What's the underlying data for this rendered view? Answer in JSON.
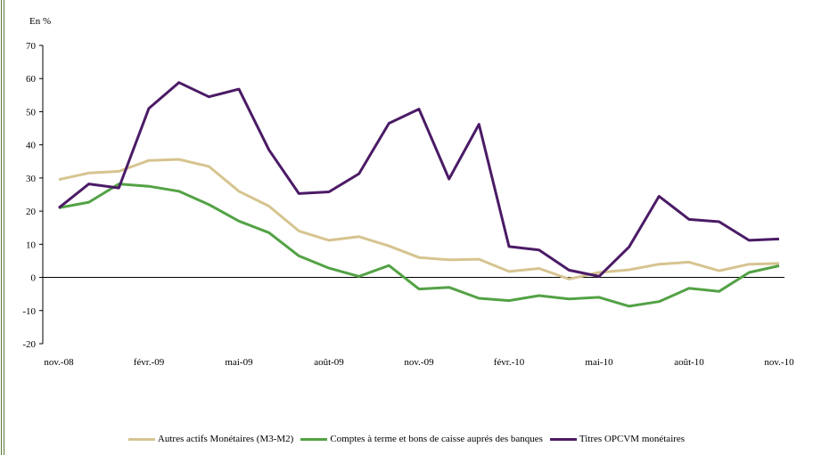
{
  "chart_data": {
    "type": "line",
    "ylabel": "En %",
    "ylim": [
      -20,
      70
    ],
    "yticks": [
      70,
      60,
      50,
      40,
      30,
      20,
      10,
      0,
      -10,
      -20
    ],
    "x": [
      "nov.-08",
      "déc.-08",
      "janv.-09",
      "févr.-09",
      "mars-09",
      "avr.-09",
      "mai-09",
      "juin-09",
      "juil.-09",
      "août-09",
      "sept.-09",
      "oct.-09",
      "nov.-09",
      "déc.-09",
      "janv.-10",
      "févr.-10",
      "mars-10",
      "avr.-10",
      "mai-10",
      "juin-10",
      "juil.-10",
      "août-10",
      "sept.-10",
      "oct.-10",
      "nov.-10"
    ],
    "xtick_labels": [
      {
        "index": 0,
        "label": "nov.-08"
      },
      {
        "index": 3,
        "label": "févr.-09"
      },
      {
        "index": 6,
        "label": "mai-09"
      },
      {
        "index": 9,
        "label": "août-09"
      },
      {
        "index": 12,
        "label": "nov.-09"
      },
      {
        "index": 15,
        "label": "févr.-10"
      },
      {
        "index": 18,
        "label": "mai-10"
      },
      {
        "index": 21,
        "label": "août-10"
      },
      {
        "index": 24,
        "label": "nov.-10"
      }
    ],
    "series": [
      {
        "name": "Autres actifs Monétaires (M3-M2)",
        "color": "#d6c490",
        "values": [
          29.5,
          31.5,
          32,
          35.3,
          35.6,
          33.5,
          26,
          21.5,
          14,
          11.2,
          12.3,
          9.5,
          6,
          5.3,
          5.5,
          1.8,
          2.7,
          -0.5,
          1.5,
          2.3,
          4,
          4.6,
          2,
          4,
          4.2
        ]
      },
      {
        "name": "Comptes à terme et bons de caisse auprés des banques",
        "color": "#53a245",
        "values": [
          21,
          22.7,
          28.2,
          27.5,
          26,
          22,
          17,
          13.5,
          6.5,
          2.8,
          0.3,
          3.6,
          -3.5,
          -3,
          -6.3,
          -7,
          -5.5,
          -6.5,
          -6,
          -8.7,
          -7.3,
          -3.3,
          -4.2,
          1.5,
          3.5
        ]
      },
      {
        "name": "Titres OPCVM monétaires",
        "color": "#4b1b66",
        "values": [
          21,
          28.2,
          27,
          51,
          58.8,
          54.5,
          56.8,
          38.5,
          25.3,
          25.8,
          31.3,
          46.5,
          50.8,
          29.7,
          46.2,
          9.3,
          8.3,
          2.2,
          0.3,
          9.2,
          24.5,
          17.5,
          16.8,
          11.2,
          11.6
        ]
      }
    ],
    "grid": false,
    "legend_position": "bottom"
  },
  "frame_color": "#5b7a3a"
}
